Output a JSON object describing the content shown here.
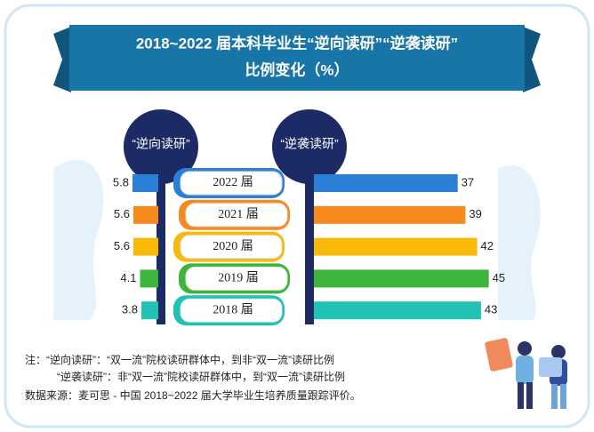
{
  "chart_data": {
    "type": "bar",
    "title": "2018~2022 届本科毕业生“逆向读研”“逆袭读研”",
    "subtitle": "比例变化（%）",
    "categories": [
      "2022 届",
      "2021 届",
      "2020 届",
      "2019 届",
      "2018 届"
    ],
    "colors": [
      "#2b7fd6",
      "#f58a1f",
      "#f8b90c",
      "#3db53a",
      "#1fc2b3"
    ],
    "series": [
      {
        "name": "“逆向读研”",
        "values": [
          5.8,
          5.6,
          5.6,
          4.1,
          3.8
        ]
      },
      {
        "name": "“逆袭读研”",
        "values": [
          37,
          39,
          42,
          45,
          43
        ]
      }
    ],
    "notes": [
      "注：“逆向读研”：“双一流”院校读研群体中，到非“双一流”读研比例",
      "“逆袭读研”：非“双一流”院校读研群体中，到“双一流”读研比例"
    ],
    "source": "数据来源：麦可思 - 中国 2018~2022 届大学毕业生培养质量跟踪评价。"
  }
}
